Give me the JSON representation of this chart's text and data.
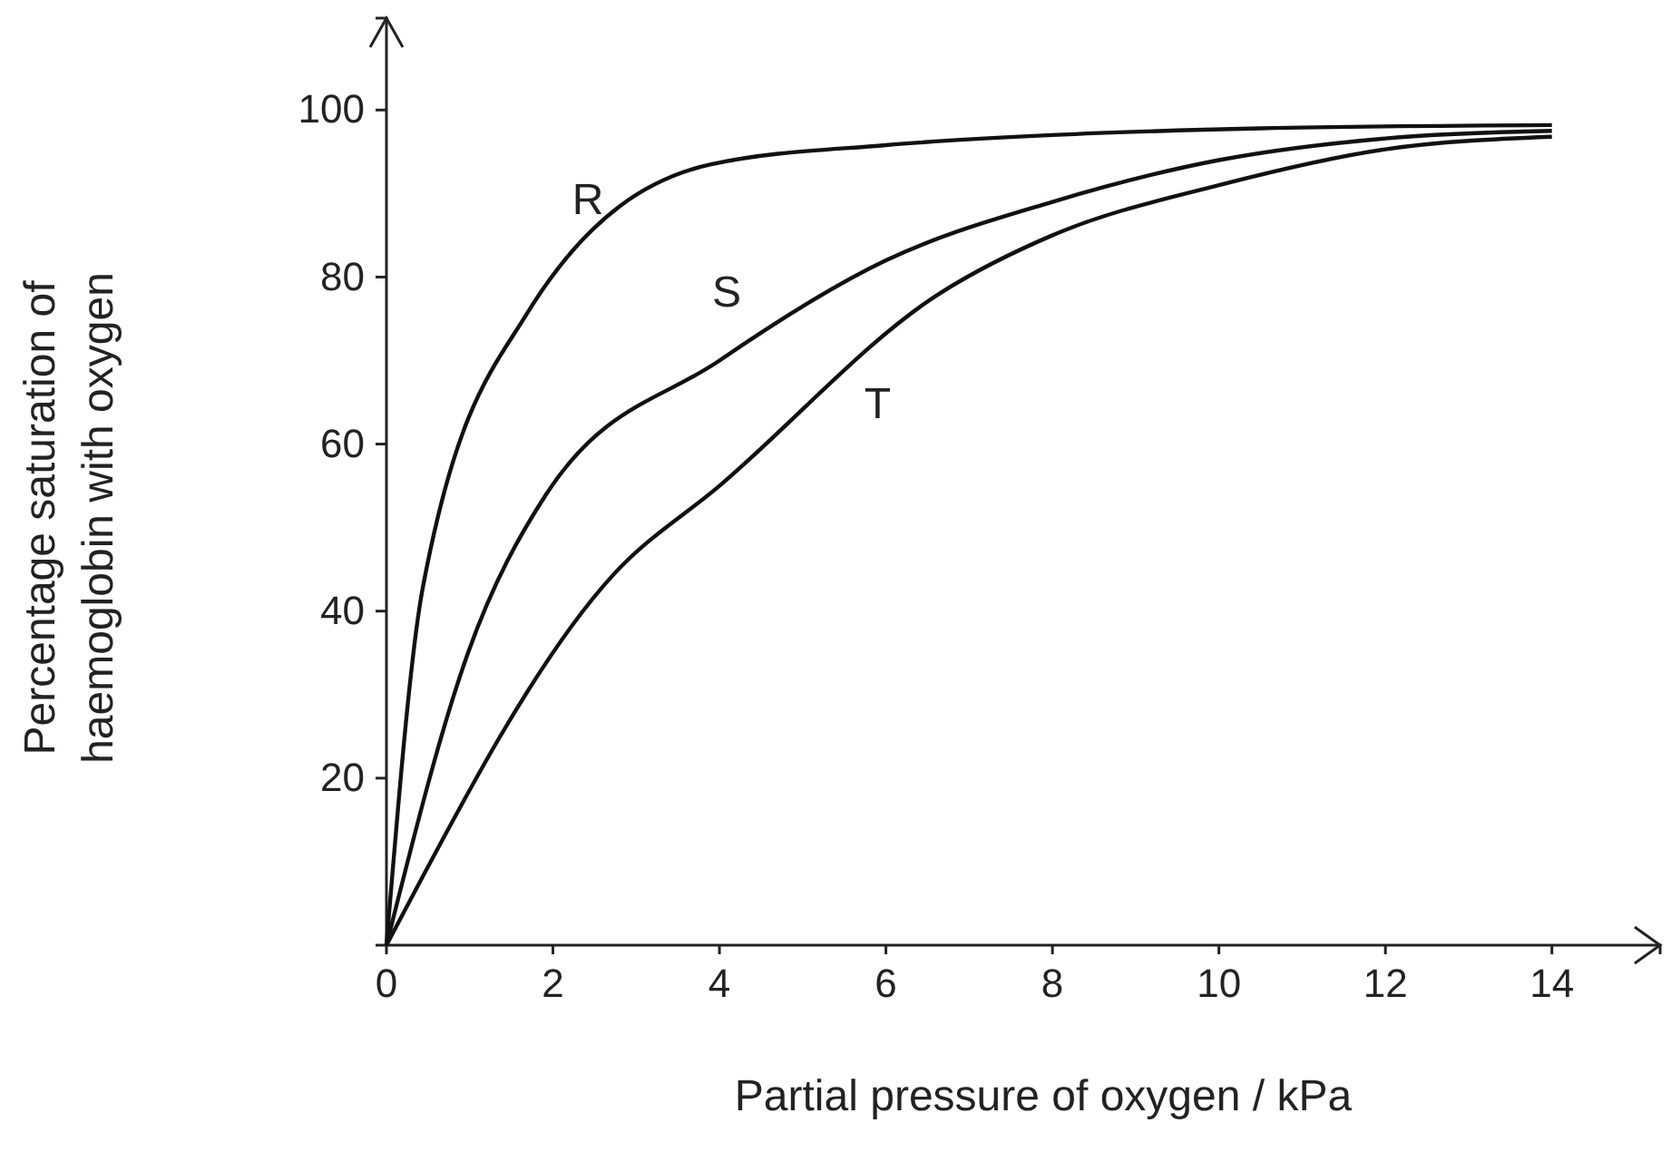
{
  "chart_data": {
    "type": "line",
    "xlabel": "Partial pressure of oxygen  / kPa",
    "ylabel": "Percentage saturation of\nhaemoglobin with oxygen",
    "xlim": [
      0,
      15.3
    ],
    "ylim": [
      0,
      111
    ],
    "xticks": [
      {
        "value": 0,
        "label": "0"
      },
      2,
      4,
      6,
      8,
      10,
      12,
      14
    ],
    "yticks": [
      20,
      40,
      60,
      80,
      100
    ],
    "grid": false,
    "marker": "none",
    "line_style": "solid",
    "series": [
      {
        "name": "R",
        "color": "#111111",
        "x": [
          0,
          0.44,
          1.68,
          3.9,
          6,
          8,
          10.5,
          14
        ],
        "values": [
          0,
          43,
          75.5,
          93.5,
          95.8,
          97,
          97.8,
          98.2
        ]
      },
      {
        "name": "S",
        "color": "#111111",
        "x": [
          0,
          0.98,
          1.92,
          4,
          6,
          8,
          10,
          12,
          14
        ],
        "values": [
          0,
          35,
          54,
          70,
          82,
          89,
          94,
          96.6,
          97.5
        ]
      },
      {
        "name": "T",
        "color": "#111111",
        "x": [
          0,
          2.72,
          4,
          6.64,
          8,
          10,
          12,
          14
        ],
        "values": [
          0,
          44.3,
          55,
          78,
          85,
          91,
          95.3,
          96.8
        ]
      }
    ]
  }
}
